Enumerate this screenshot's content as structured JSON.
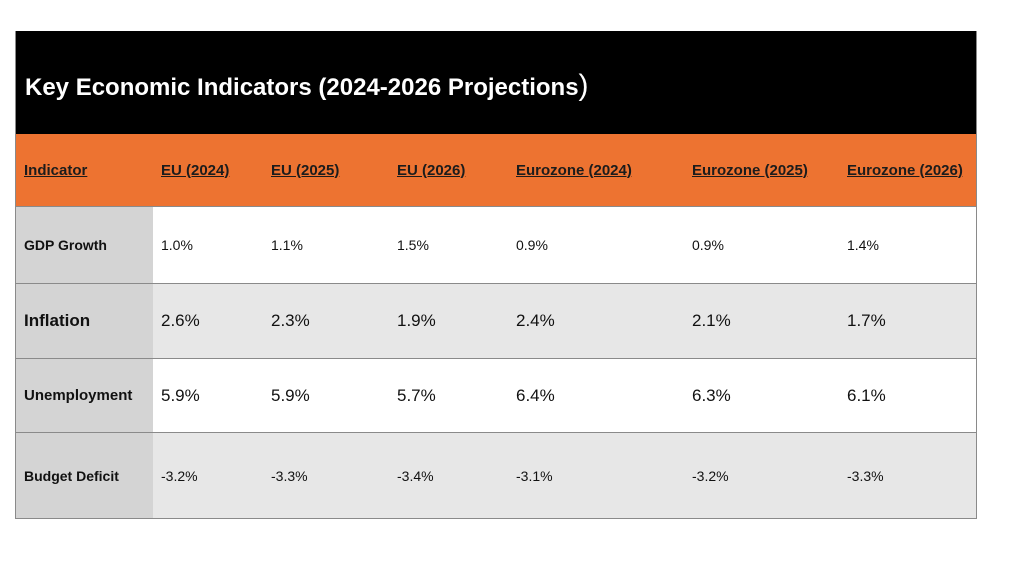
{
  "title": {
    "text": " Key Economic Indicators (2024-2026 Projections",
    "closing": ")"
  },
  "table": {
    "headers": [
      "Indicator",
      "EU (2024)",
      "EU (2025)",
      "EU (2026)",
      "Eurozone (2024)",
      "Eurozone (2025)",
      "Eurozone (2026)"
    ],
    "rows": [
      {
        "label": "GDP Growth",
        "values": [
          "1.0%",
          "1.1%",
          "1.5%",
          "0.9%",
          "0.9%",
          "1.4%"
        ]
      },
      {
        "label": "Inflation",
        "values": [
          "2.6%",
          "2.3%",
          "1.9%",
          "2.4%",
          "2.1%",
          "1.7%"
        ]
      },
      {
        "label": "Unemployment",
        "values": [
          "5.9%",
          "5.9%",
          "5.7%",
          "6.4%",
          "6.3%",
          "6.1%"
        ]
      },
      {
        "label": "Budget Deficit",
        "values": [
          "-3.2%",
          "-3.3%",
          "-3.4%",
          "-3.1%",
          "-3.2%",
          "-3.3%"
        ]
      }
    ]
  },
  "colors": {
    "title_background": "#000000",
    "header_background": "#ed7331",
    "label_column": "#d4d4d4",
    "alt_row": "#e7e7e7"
  }
}
